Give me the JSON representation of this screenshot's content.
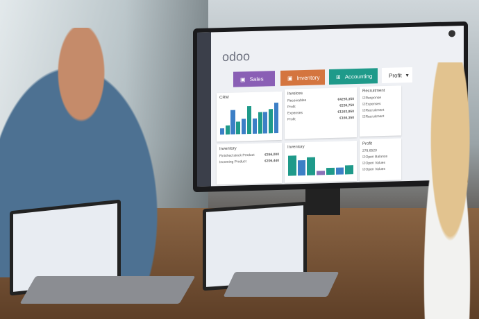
{
  "monitor": {
    "logo": "odoo",
    "tiles": [
      {
        "label": "Sales",
        "color": "#8a5fb5"
      },
      {
        "label": "Inventory",
        "color": "#d4753f"
      },
      {
        "label": "Accounting",
        "color": "#1f9a8a"
      }
    ],
    "dropdown": "Profit",
    "crm": {
      "title": "CRM",
      "bars": [
        2,
        3,
        8,
        4,
        5,
        9,
        5,
        7,
        7,
        8,
        10
      ]
    },
    "invoices": {
      "title": "Invoices",
      "rows": [
        {
          "label": "Receivables",
          "value": "€4255,350"
        },
        {
          "label": "Profit",
          "value": "€236,750"
        },
        {
          "label": "Expenses",
          "value": "€1363,950"
        },
        {
          "label": "Profit",
          "value": "€166,350"
        }
      ]
    },
    "recruitment": {
      "title": "Recruitment",
      "items": [
        "Response",
        "Expenses",
        "Recruitment",
        "Recruitment"
      ]
    },
    "inventory1": {
      "title": "Inventory",
      "rows": [
        {
          "label": "Finished stock Product",
          "value": "€266,000"
        },
        {
          "label": "Incoming Product",
          "value": "€206,440"
        }
      ]
    },
    "inventory2": {
      "title": "Inventory",
      "bars": [
        9,
        7,
        8,
        2,
        3,
        3,
        4
      ]
    },
    "profit": {
      "title": "Profit",
      "value": "278,6520",
      "items": [
        "Open Balance",
        "Open Values",
        "Open Values"
      ]
    }
  },
  "colors": {
    "teal": "#1f9a8a",
    "blue": "#3c7fc6",
    "purple": "#8a72b8"
  }
}
